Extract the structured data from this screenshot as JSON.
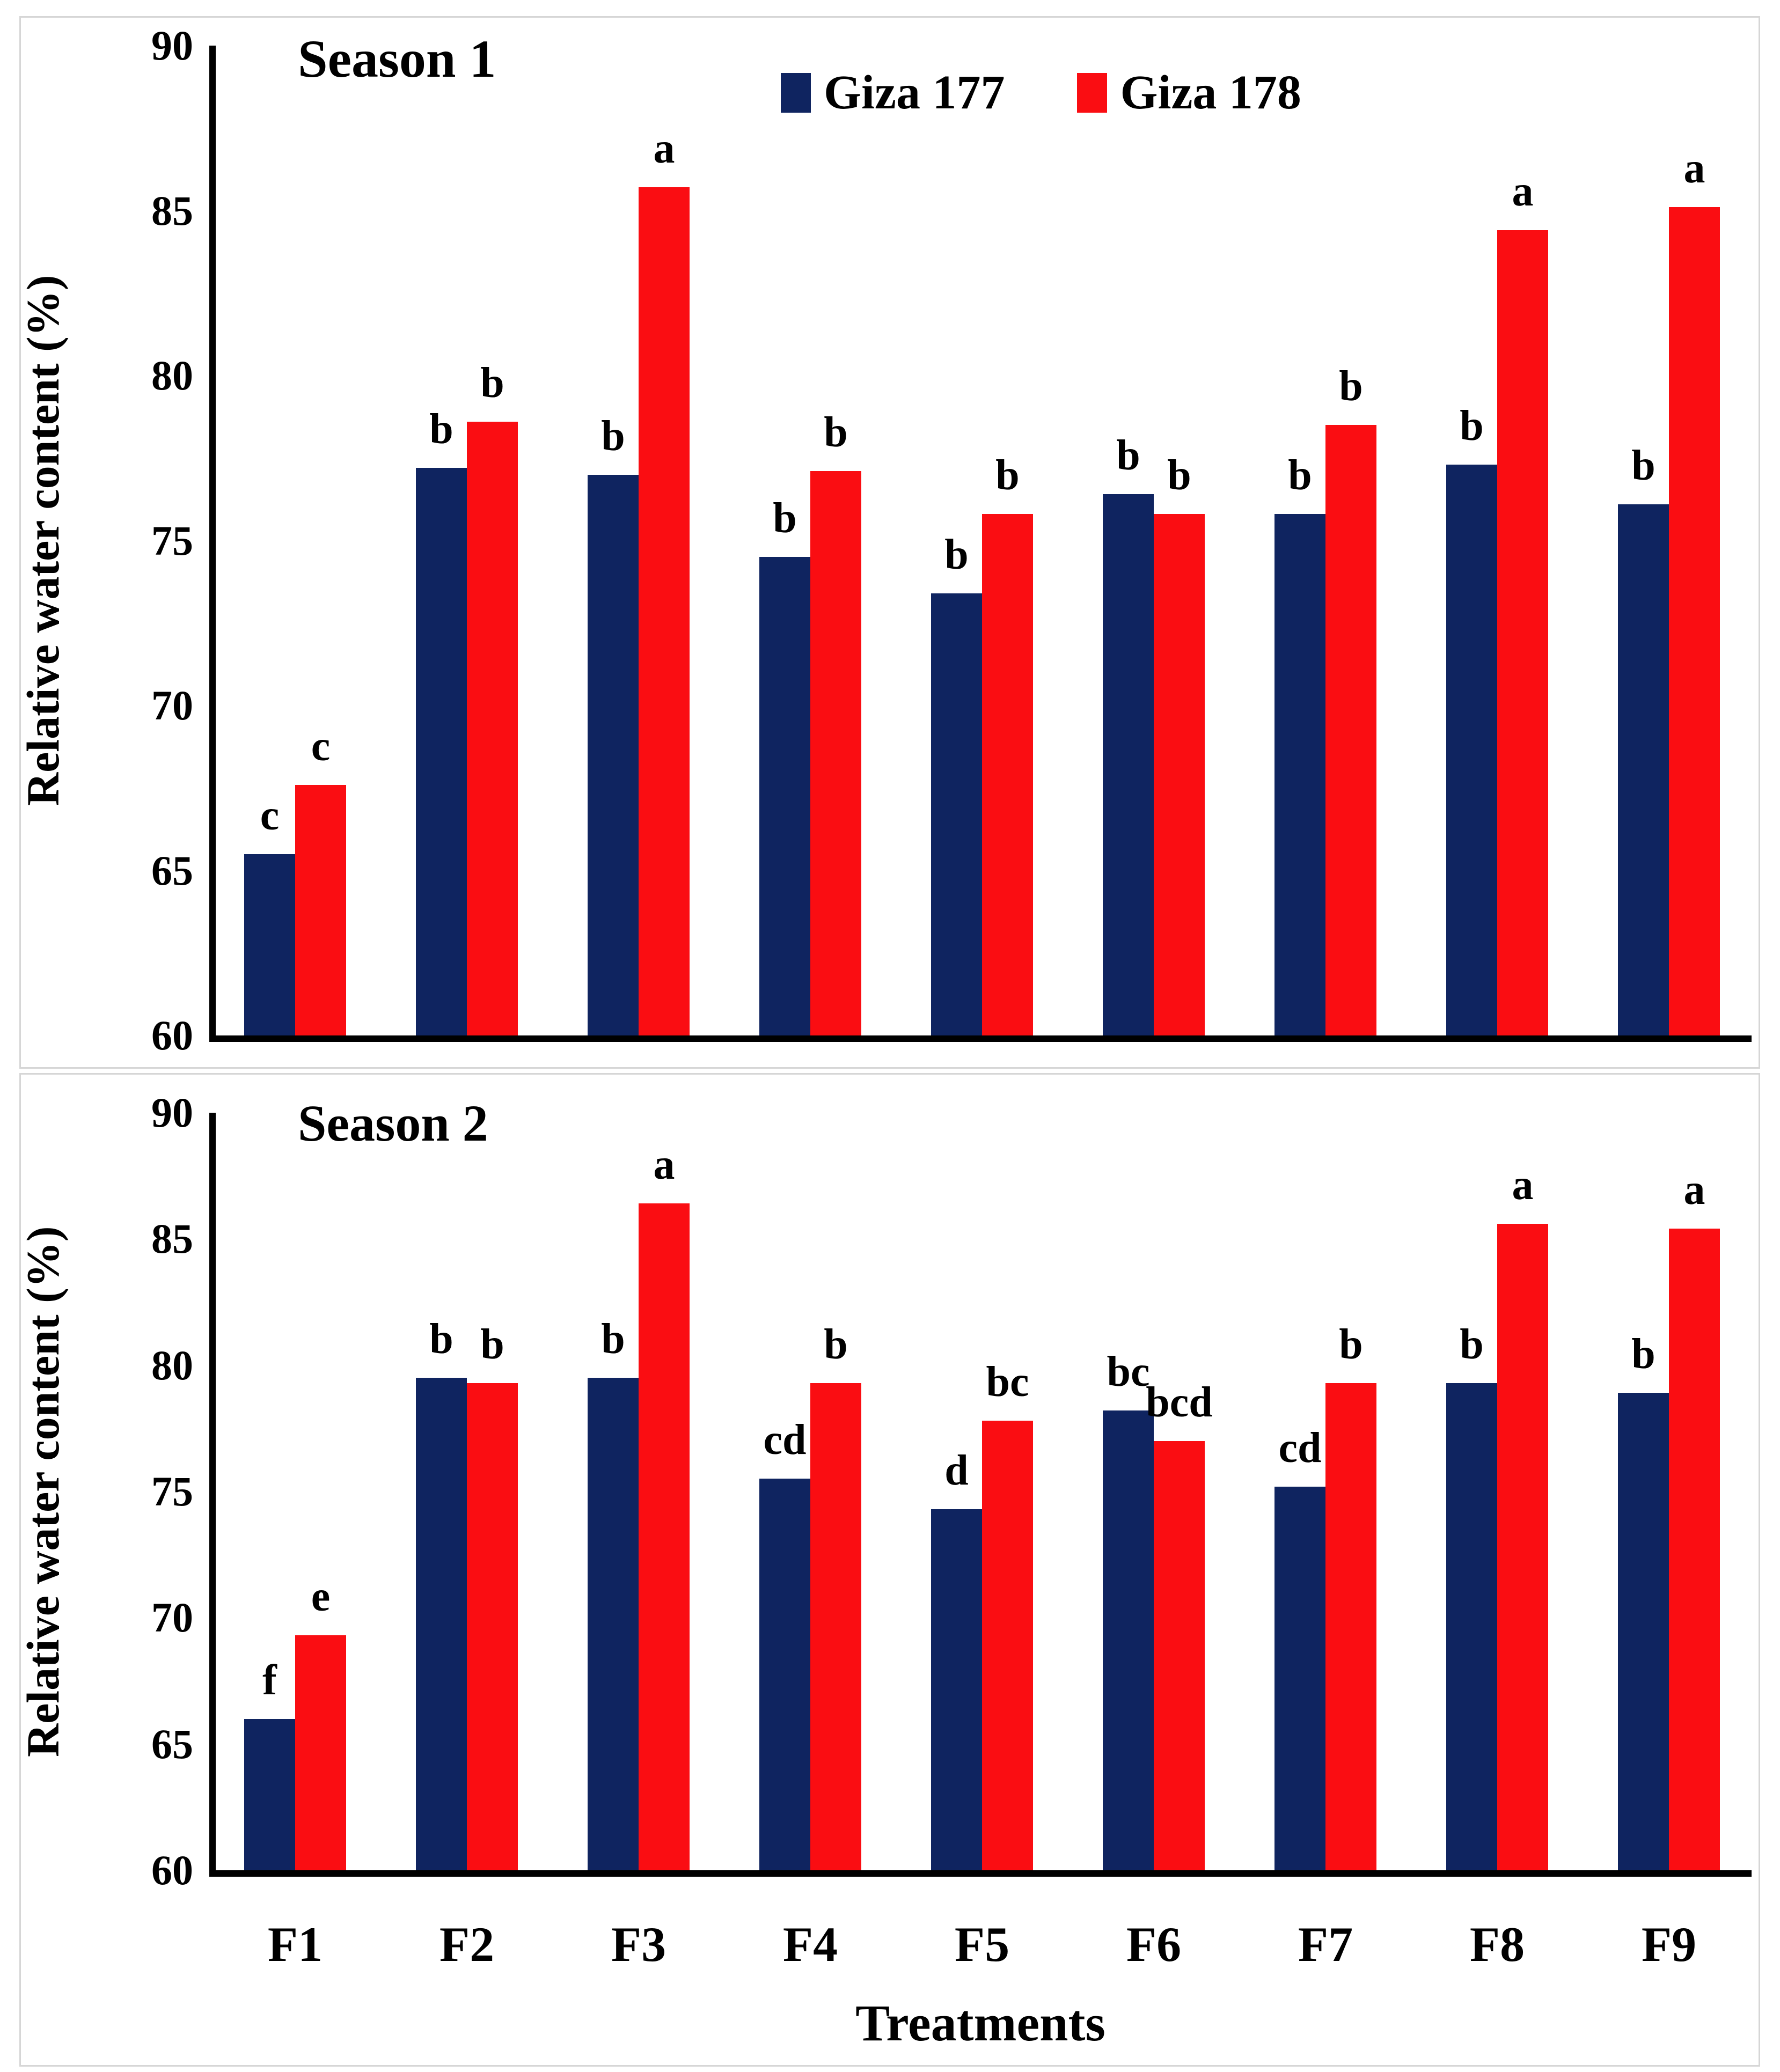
{
  "figure": {
    "background": "#ffffff",
    "frame_color": "#d6d6d6"
  },
  "colors": {
    "giza177": "#0F2460",
    "giza178": "#FA0D12",
    "axis": "#000000"
  },
  "legend": {
    "position": "top-center-season1-panel",
    "items": [
      {
        "label": "Giza 177",
        "color_key": "giza177"
      },
      {
        "label": "Giza 178",
        "color_key": "giza178"
      }
    ]
  },
  "chart_data": [
    {
      "type": "bar",
      "panel": "season1",
      "title": "Season 1",
      "ylabel": "Relative water content (%)",
      "xlabel": "",
      "ylim": [
        60,
        90
      ],
      "yticks": [
        60,
        65,
        70,
        75,
        80,
        85,
        90
      ],
      "grid": false,
      "show_x_tick_labels": false,
      "categories": [
        "F1",
        "F2",
        "F3",
        "F4",
        "F5",
        "F6",
        "F7",
        "F8",
        "F9"
      ],
      "series": [
        {
          "name": "Giza 177",
          "color_key": "giza177",
          "values": [
            65.5,
            77.2,
            77.0,
            74.5,
            73.4,
            76.4,
            75.8,
            77.3,
            76.1
          ],
          "letters": [
            "c",
            "b",
            "b",
            "b",
            "b",
            "b",
            "b",
            "b",
            "b"
          ]
        },
        {
          "name": "Giza 178",
          "color_key": "giza178",
          "values": [
            67.6,
            78.6,
            85.7,
            77.1,
            75.8,
            75.8,
            78.5,
            84.4,
            85.1
          ],
          "letters": [
            "c",
            "b",
            "a",
            "b",
            "b",
            "b",
            "b",
            "a",
            "a"
          ]
        }
      ]
    },
    {
      "type": "bar",
      "panel": "season2",
      "title": "Season 2",
      "ylabel": "Relative water content (%)",
      "xlabel": "Treatments",
      "ylim": [
        60,
        90
      ],
      "yticks": [
        60,
        65,
        70,
        75,
        80,
        85,
        90
      ],
      "grid": false,
      "show_x_tick_labels": true,
      "categories": [
        "F1",
        "F2",
        "F3",
        "F4",
        "F5",
        "F6",
        "F7",
        "F8",
        "F9"
      ],
      "series": [
        {
          "name": "Giza 177",
          "color_key": "giza177",
          "values": [
            66.0,
            79.5,
            79.5,
            75.5,
            74.3,
            78.2,
            75.2,
            79.3,
            78.9
          ],
          "letters": [
            "f",
            "b",
            "b",
            "cd",
            "d",
            "bc",
            "cd",
            "b",
            "b"
          ]
        },
        {
          "name": "Giza 178",
          "color_key": "giza178",
          "values": [
            69.3,
            79.3,
            86.4,
            79.3,
            77.8,
            77.0,
            79.3,
            85.6,
            85.4
          ],
          "letters": [
            "e",
            "b",
            "a",
            "b",
            "bc",
            "bcd",
            "b",
            "a",
            "a"
          ]
        }
      ]
    }
  ]
}
